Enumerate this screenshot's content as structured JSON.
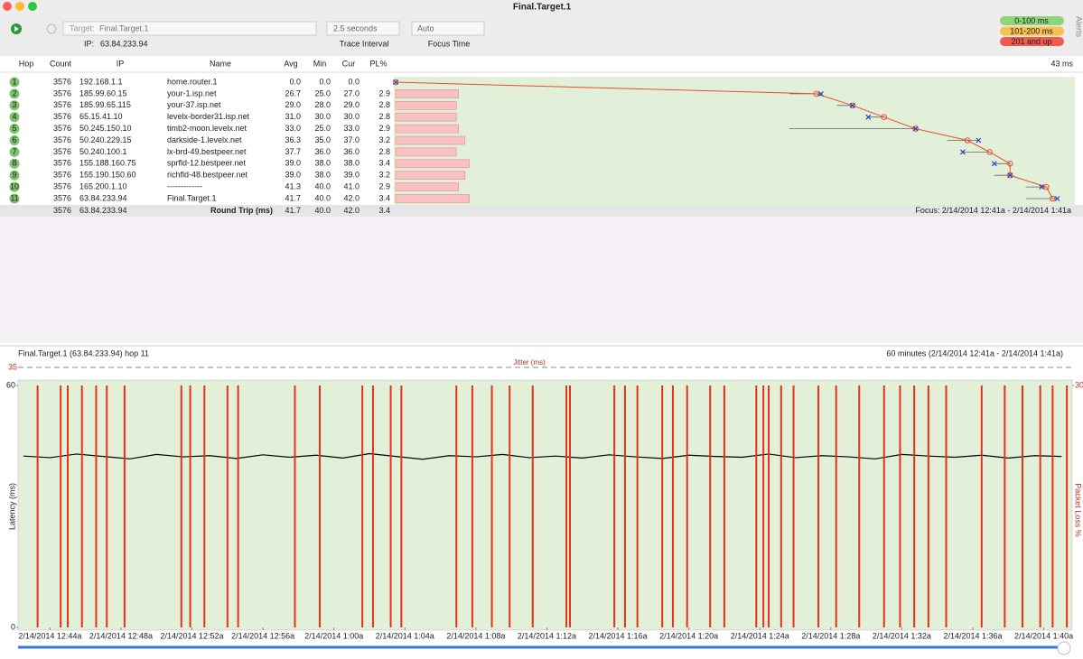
{
  "window_title": "Final.Target.1",
  "toolbar": {
    "target_label": "Target:",
    "target": "Final.Target.1",
    "ip_label": "IP:",
    "ip": "63.84.233.94",
    "interval": "2.5 seconds",
    "interval_label": "Trace Interval",
    "focus": "Auto",
    "focus_label": "Focus Time",
    "alerts": "Alerts"
  },
  "legend": [
    "0-100 ms",
    "101-200 ms",
    "201 and up"
  ],
  "trace": {
    "columns": [
      "Hop",
      "Count",
      "IP",
      "Name",
      "Avg",
      "Min",
      "Cur",
      "PL%"
    ],
    "xmax": {
      "value": 43,
      "label": "43 ms"
    },
    "rows": [
      [
        "1",
        "3576",
        "192.168.1.1",
        "home.router.1",
        "0.0",
        "0.0",
        "0.0",
        null
      ],
      [
        "2",
        "3576",
        "185.99.60.15",
        "your-1.isp.net",
        "26.7",
        "25.0",
        "27.0",
        "2.9"
      ],
      [
        "3",
        "3576",
        "185.99.65.115",
        "your-37.isp.net",
        "29.0",
        "28.0",
        "29.0",
        "2.8"
      ],
      [
        "4",
        "3576",
        "65.15.41.10",
        "levelx-border31.isp.net",
        "31.0",
        "30.0",
        "30.0",
        "2.8"
      ],
      [
        "5",
        "3576",
        "50.245.150.10",
        "timb2-moon.levelx.net",
        "33.0",
        "25.0",
        "33.0",
        "2.9"
      ],
      [
        "6",
        "3576",
        "50.240.229.15",
        "darkside-1.levelx.net",
        "36.3",
        "35.0",
        "37.0",
        "3.2"
      ],
      [
        "7",
        "3576",
        "50.240.100.1",
        "lx-brd-49.bestpeer.net",
        "37.7",
        "36.0",
        "36.0",
        "2.8"
      ],
      [
        "8",
        "3576",
        "155.188.160.75",
        "sprfld-12.bestpeer.net",
        "39.0",
        "38.0",
        "38.0",
        "3.4"
      ],
      [
        "9",
        "3576",
        "155.190.150.60",
        "richfld-48.bestpeer.net",
        "39.0",
        "38.0",
        "39.0",
        "3.2"
      ],
      [
        "10",
        "3576",
        "165.200.1.10",
        "-------------",
        "41.3",
        "40.0",
        "41.0",
        "2.9"
      ],
      [
        "11",
        "3576",
        "63.84.233.94",
        "Final.Target.1",
        "41.7",
        "40.0",
        "42.0",
        "3.4"
      ]
    ],
    "summary": {
      "count": "3576",
      "ip": "63.84.233.94",
      "label": "Round Trip (ms)",
      "avg": "41.7",
      "min": "40.0",
      "cur": "42.0",
      "pl": "3.4",
      "focus": "Focus: 2/14/2014 12:41a - 2/14/2014 1:41a"
    }
  },
  "chart_data": {
    "type": "line",
    "title": "Final.Target.1 (63.84.233.94) hop 11",
    "subtitle": "60 minutes (2/14/2014 12:41a - 2/14/2014 1:41a)",
    "y_label": "Latency (ms)",
    "y2_label": "Packet Loss %",
    "jitter_label": "Jitter (ms)",
    "jitter_ticks": [
      35
    ],
    "xlim": [
      1.2,
      60.6
    ],
    "xticks": [
      {
        "value": 3,
        "label": "2/14/2014 12:44a"
      },
      {
        "value": 7,
        "label": "2/14/2014 12:48a"
      },
      {
        "value": 11,
        "label": "2/14/2014 12:52a"
      },
      {
        "value": 15,
        "label": "2/14/2014 12:56a"
      },
      {
        "value": 19,
        "label": "2/14/2014 1:00a"
      },
      {
        "value": 23,
        "label": "2/14/2014 1:04a"
      },
      {
        "value": 27,
        "label": "2/14/2014 1:08a"
      },
      {
        "value": 31,
        "label": "2/14/2014 1:12a"
      },
      {
        "value": 35,
        "label": "2/14/2014 1:16a"
      },
      {
        "value": 39,
        "label": "2/14/2014 1:20a"
      },
      {
        "value": 43,
        "label": "2/14/2014 1:24a"
      },
      {
        "value": 47,
        "label": "2/14/2014 1:28a"
      },
      {
        "value": 51,
        "label": "2/14/2014 1:32a"
      },
      {
        "value": 55,
        "label": "2/14/2014 1:36a"
      },
      {
        "value": 59,
        "label": "2/14/2014 1:40a"
      }
    ],
    "ylim": [
      0,
      60
    ],
    "yticks": [
      0,
      60
    ],
    "y2lim": [
      0,
      30
    ],
    "y2ticks": [
      30
    ],
    "series": [
      {
        "color": "#000000",
        "x": [
          1.5,
          3,
          4.5,
          6,
          7.5,
          9,
          10.5,
          12,
          13.5,
          15,
          16.5,
          18,
          19.5,
          21,
          22.5,
          24,
          25.5,
          27,
          28.5,
          30,
          31.5,
          33,
          34.5,
          36,
          37.5,
          39,
          40.5,
          42,
          43.5,
          45,
          46.5,
          48,
          49.5,
          51,
          52.5,
          54,
          55.5,
          57,
          58.5,
          60
        ],
        "values": [
          42.5,
          42.1,
          43.0,
          42.4,
          41.8,
          42.9,
          42.3,
          42.6,
          41.9,
          42.8,
          42.2,
          42.7,
          42.0,
          43.1,
          42.4,
          41.7,
          42.6,
          42.3,
          42.9,
          42.1,
          42.5,
          42.0,
          42.8,
          42.3,
          41.9,
          42.7,
          42.4,
          42.2,
          43.0,
          42.1,
          42.6,
          42.3,
          41.8,
          42.9,
          42.5,
          42.2,
          42.7,
          42.0,
          42.6,
          42.4
        ]
      },
      {
        "color": "#e8311a",
        "axis": "y2",
        "x": [
          2.3,
          3.6,
          4.0,
          4.8,
          5.6,
          6.2,
          7.2,
          10.4,
          10.9,
          11.7,
          13.0,
          13.6,
          16.8,
          18.2,
          20.6,
          21.2,
          22.2,
          22.8,
          25.9,
          26.8,
          27.9,
          28.9,
          30.2,
          32.1,
          32.3,
          34.8,
          35.4,
          36.1,
          37.5,
          38.1,
          38.9,
          40.2,
          41.0,
          42.8,
          43.2,
          43.5,
          44.2,
          44.9,
          46.3,
          47.3,
          48.6,
          50.0,
          50.9,
          51.7,
          52.5,
          53.5,
          55.5,
          56.8,
          57.8,
          58.8,
          59.5,
          60.3
        ],
        "values": [
          30,
          30,
          30,
          30,
          30,
          30,
          30,
          30,
          30,
          30,
          30,
          30,
          30,
          30,
          30,
          30,
          30,
          30,
          30,
          30,
          30,
          30,
          30,
          30,
          30,
          30,
          30,
          30,
          30,
          30,
          30,
          30,
          30,
          30,
          30,
          30,
          30,
          30,
          30,
          30,
          30,
          30,
          30,
          30,
          30,
          30,
          30,
          30,
          30,
          30,
          30,
          30
        ]
      }
    ]
  }
}
